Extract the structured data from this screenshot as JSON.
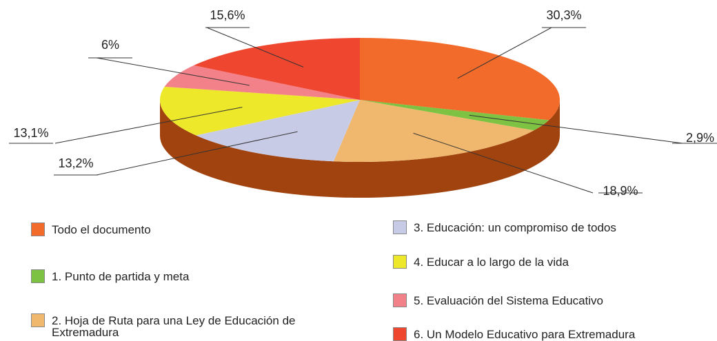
{
  "chart_data": {
    "type": "pie",
    "categories": [
      "Todo el documento",
      "1. Punto de partida y meta",
      "2. Hoja de Ruta para una Ley de Educación de Extremadura",
      "3. Educación: un compromiso de todos",
      "4. Educar a lo largo de la vida",
      "5. Evaluación del Sistema Educativo",
      "6. Un Modelo Educativo para Extremadura"
    ],
    "values": [
      30.3,
      2.9,
      18.9,
      13.2,
      13.1,
      6,
      15.6
    ],
    "value_labels": [
      "30,3%",
      "2,9%",
      "18,9%",
      "13,2%",
      "13,1%",
      "6%",
      "15,6%"
    ],
    "colors": [
      "#f26b2a",
      "#7dc242",
      "#f0b86e",
      "#c8cbe6",
      "#eee82a",
      "#f3818a",
      "#ef4630"
    ]
  }
}
